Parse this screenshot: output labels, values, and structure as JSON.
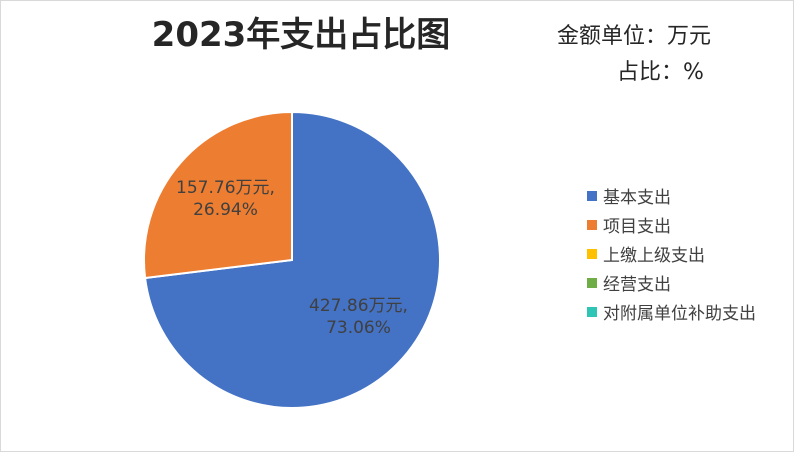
{
  "chart_data": {
    "type": "pie",
    "title": "2023年支出占比图",
    "unit_labels": [
      "金额单位：万元",
      "占比：%"
    ],
    "categories": [
      "基本支出",
      "项目支出",
      "上缴上级支出",
      "经营支出",
      "对附属单位补助支出"
    ],
    "values": [
      427.86,
      157.76,
      0,
      0,
      0
    ],
    "percents": [
      73.06,
      26.94,
      0,
      0,
      0
    ],
    "colors": [
      "#4472C4",
      "#ED7D31",
      "#FFC000",
      "#70AD47",
      "#2EC4B6"
    ],
    "data_labels": [
      {
        "category": "基本支出",
        "lines": [
          "427.86万元,",
          "73.06%"
        ]
      },
      {
        "category": "项目支出",
        "lines": [
          "157.76万元,",
          "26.94%"
        ]
      }
    ],
    "legend_position": "right"
  }
}
